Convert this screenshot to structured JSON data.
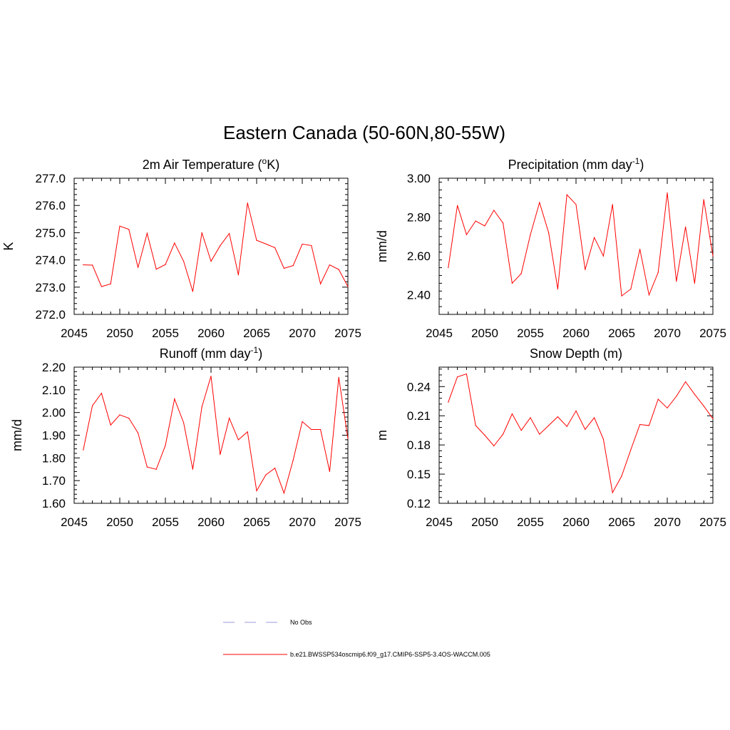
{
  "figure": {
    "title": "Eastern Canada (50-60N,80-55W)"
  },
  "legend": {
    "entries": [
      {
        "label": "No Obs",
        "color": "#9999dd",
        "style": "dashed"
      },
      {
        "label": "b.e21.BWSSP534oscmip6.f09_g17.CMIP6-SSP5-3.4OS-WACCM.005",
        "color": "#ff0000",
        "style": "solid"
      }
    ]
  },
  "chart_data": [
    {
      "type": "line",
      "title": "2m Air Temperature (",
      "title_sup": "o",
      "title_after": "K)",
      "ylabel": "K",
      "xlabel": "",
      "xlim": [
        2045,
        2075
      ],
      "ylim": [
        272.0,
        277.0
      ],
      "xticks": [
        2045,
        2050,
        2055,
        2060,
        2065,
        2070,
        2075
      ],
      "yticks": [
        "272.0",
        "273.0",
        "274.0",
        "275.0",
        "276.0",
        "277.0"
      ],
      "series": [
        {
          "name": "b.e21.BWSSP534oscmip6.f09_g17.CMIP6-SSP5-3.4OS-WACCM.005",
          "color": "#ff0000",
          "x": [
            2046,
            2047,
            2048,
            2049,
            2050,
            2051,
            2052,
            2053,
            2054,
            2055,
            2056,
            2057,
            2058,
            2059,
            2060,
            2061,
            2062,
            2063,
            2064,
            2065,
            2066,
            2067,
            2068,
            2069,
            2070,
            2071,
            2072,
            2073,
            2074,
            2075
          ],
          "values": [
            273.82,
            273.81,
            273.02,
            273.12,
            275.24,
            275.12,
            273.72,
            274.98,
            273.66,
            273.83,
            274.62,
            273.95,
            272.84,
            275.0,
            273.95,
            274.52,
            274.97,
            273.45,
            276.09,
            274.72,
            274.59,
            274.45,
            273.69,
            273.79,
            274.58,
            274.53,
            273.12,
            273.82,
            273.65,
            273.02
          ]
        }
      ]
    },
    {
      "type": "line",
      "title": "Precipitation (mm day",
      "title_sup": "-1",
      "title_after": ")",
      "ylabel": "mm/d",
      "xlabel": "",
      "xlim": [
        2045,
        2075
      ],
      "ylim": [
        2.3,
        3.0
      ],
      "xticks": [
        2045,
        2050,
        2055,
        2060,
        2065,
        2070,
        2075
      ],
      "yticks": [
        "2.40",
        "2.60",
        "2.80",
        "3.00"
      ],
      "series": [
        {
          "name": "b.e21.BWSSP534oscmip6.f09_g17.CMIP6-SSP5-3.4OS-WACCM.005",
          "color": "#ff0000",
          "x": [
            2046,
            2047,
            2048,
            2049,
            2050,
            2051,
            2052,
            2053,
            2054,
            2055,
            2056,
            2057,
            2058,
            2059,
            2060,
            2061,
            2062,
            2063,
            2064,
            2065,
            2066,
            2067,
            2068,
            2069,
            2070,
            2071,
            2072,
            2073,
            2074,
            2075
          ],
          "values": [
            2.54,
            2.86,
            2.71,
            2.78,
            2.755,
            2.835,
            2.77,
            2.46,
            2.51,
            2.71,
            2.875,
            2.72,
            2.43,
            2.915,
            2.865,
            2.53,
            2.695,
            2.6,
            2.865,
            2.395,
            2.43,
            2.635,
            2.4,
            2.515,
            2.925,
            2.47,
            2.75,
            2.46,
            2.89,
            2.6
          ]
        }
      ]
    },
    {
      "type": "line",
      "title": "Runoff (mm day",
      "title_sup": "-1",
      "title_after": ")",
      "ylabel": "mm/d",
      "xlabel": "",
      "xlim": [
        2045,
        2075
      ],
      "ylim": [
        1.6,
        2.2
      ],
      "xticks": [
        2045,
        2050,
        2055,
        2060,
        2065,
        2070,
        2075
      ],
      "yticks": [
        "1.60",
        "1.70",
        "1.80",
        "1.90",
        "2.00",
        "2.10",
        "2.20"
      ],
      "series": [
        {
          "name": "b.e21.BWSSP534oscmip6.f09_g17.CMIP6-SSP5-3.4OS-WACCM.005",
          "color": "#ff0000",
          "x": [
            2046,
            2047,
            2048,
            2049,
            2050,
            2051,
            2052,
            2053,
            2054,
            2055,
            2056,
            2057,
            2058,
            2059,
            2060,
            2061,
            2062,
            2063,
            2064,
            2065,
            2066,
            2067,
            2068,
            2069,
            2070,
            2071,
            2072,
            2073,
            2074,
            2075
          ],
          "values": [
            1.835,
            2.03,
            2.085,
            1.945,
            1.99,
            1.975,
            1.91,
            1.76,
            1.75,
            1.855,
            2.06,
            1.955,
            1.75,
            2.025,
            2.16,
            1.815,
            1.975,
            1.88,
            1.915,
            1.655,
            1.725,
            1.755,
            1.645,
            1.79,
            1.96,
            1.925,
            1.925,
            1.74,
            2.155,
            1.885
          ]
        }
      ]
    },
    {
      "type": "line",
      "title": "Snow Depth (m)",
      "title_sup": "",
      "title_after": "",
      "ylabel": "m",
      "xlabel": "",
      "xlim": [
        2045,
        2075
      ],
      "ylim": [
        0.12,
        0.26
      ],
      "xticks": [
        2045,
        2050,
        2055,
        2060,
        2065,
        2070,
        2075
      ],
      "yticks": [
        "0.12",
        "0.15",
        "0.18",
        "0.21",
        "0.24"
      ],
      "series": [
        {
          "name": "b.e21.BWSSP534oscmip6.f09_g17.CMIP6-SSP5-3.4OS-WACCM.005",
          "color": "#ff0000",
          "x": [
            2046,
            2047,
            2048,
            2049,
            2050,
            2051,
            2052,
            2053,
            2054,
            2055,
            2056,
            2057,
            2058,
            2059,
            2060,
            2061,
            2062,
            2063,
            2064,
            2065,
            2066,
            2067,
            2068,
            2069,
            2070,
            2071,
            2072,
            2073,
            2074,
            2075
          ],
          "values": [
            0.224,
            0.25,
            0.253,
            0.2,
            0.19,
            0.179,
            0.191,
            0.212,
            0.195,
            0.208,
            0.191,
            0.2,
            0.209,
            0.199,
            0.215,
            0.196,
            0.208,
            0.186,
            0.131,
            0.148,
            0.175,
            0.201,
            0.2,
            0.227,
            0.218,
            0.23,
            0.245,
            0.232,
            0.22,
            0.207
          ]
        }
      ]
    }
  ]
}
